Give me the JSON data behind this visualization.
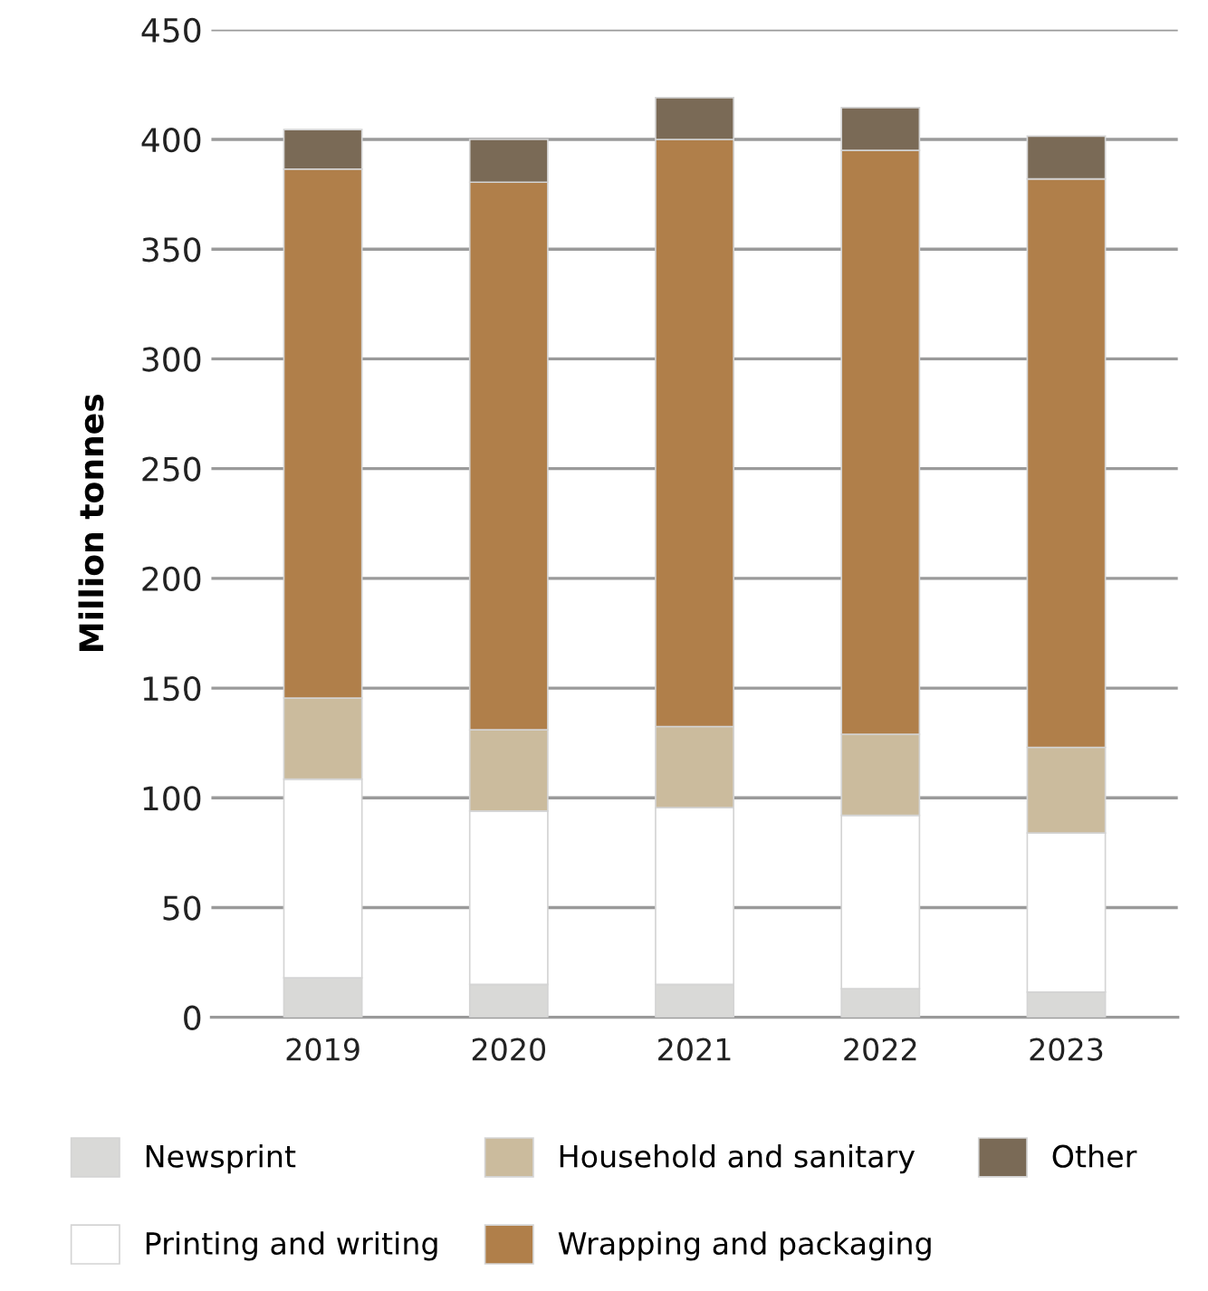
{
  "chart_data": {
    "type": "bar",
    "stacked": true,
    "ylabel": "Million tonnes",
    "categories": [
      "2019",
      "2020",
      "2021",
      "2022",
      "2023"
    ],
    "series": [
      {
        "name": "Newsprint",
        "color": "#d9d9d7",
        "values": [
          18,
          15,
          15,
          13,
          11.5
        ]
      },
      {
        "name": "Printing and writing",
        "color": "#ffffff",
        "values": [
          90.5,
          79,
          80.5,
          79,
          72.5
        ]
      },
      {
        "name": "Household and sanitary",
        "color": "#cbbb9d",
        "values": [
          37,
          37,
          37,
          37,
          39
        ]
      },
      {
        "name": "Wrapping and packaging",
        "color": "#b07f4a",
        "values": [
          241,
          249.5,
          267.5,
          266,
          259
        ]
      },
      {
        "name": "Other",
        "color": "#7a6a56",
        "values": [
          18,
          19.5,
          19,
          19.5,
          19.5
        ]
      }
    ],
    "ylim": [
      0,
      450
    ],
    "yticks": [
      0,
      50,
      100,
      150,
      200,
      250,
      300,
      350,
      400,
      450
    ],
    "grid": "y",
    "legend": "bottom"
  }
}
